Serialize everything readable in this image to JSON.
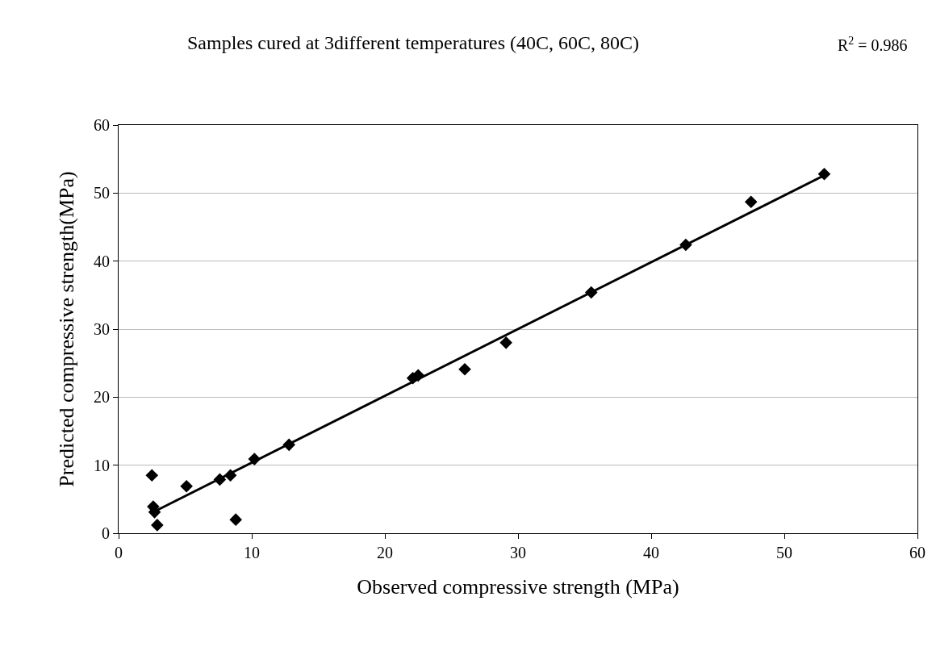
{
  "chart_data": {
    "type": "scatter",
    "title": "Samples cured at 3different temperatures (40C, 60C, 80C)",
    "xlabel": "Observed compressive strength (MPa)",
    "ylabel": "Predicted compressive strength(MPa)",
    "annotations": [
      "R$^{2}$ = 0.986"
    ],
    "xlim": [
      0,
      60
    ],
    "ylim": [
      0,
      60
    ],
    "xticks": [
      0,
      10,
      20,
      30,
      40,
      50,
      60
    ],
    "yticks": [
      0,
      10,
      20,
      30,
      40,
      50,
      60
    ],
    "grid": "y",
    "legend": false,
    "series": [
      {
        "marker": "diamond",
        "color": "#000000",
        "x": [
          2.5,
          2.6,
          2.7,
          2.9,
          5.1,
          7.6,
          8.4,
          8.8,
          10.2,
          12.8,
          22.1,
          22.5,
          26.0,
          29.1,
          35.5,
          42.6,
          47.5,
          53.0
        ],
        "values": [
          8.5,
          3.9,
          3.1,
          1.2,
          6.9,
          7.9,
          8.5,
          2.0,
          10.9,
          13.0,
          22.8,
          23.2,
          24.1,
          28.0,
          35.4,
          42.4,
          48.7,
          52.8
        ]
      },
      {
        "type": "line",
        "color": "#000000",
        "x": [
          2.7,
          53.0
        ],
        "values": [
          3.2,
          52.6
        ]
      }
    ]
  }
}
